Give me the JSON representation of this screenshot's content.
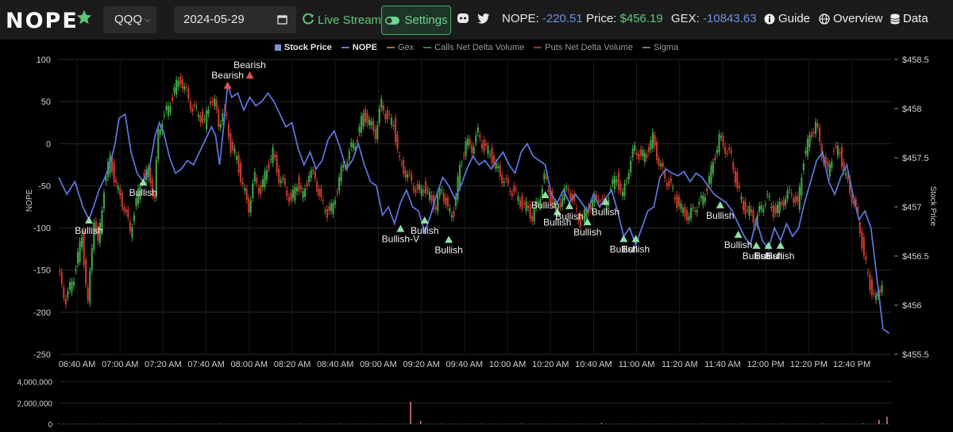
{
  "navbar": {
    "brand": "NOPE",
    "ticker_value": "QQQ",
    "date_value": "2024-05-29",
    "live_label": "Live Stream",
    "settings_label": "Settings",
    "nope_label": "NOPE:",
    "nope_value": "-220.51",
    "price_label": "Price:",
    "price_value": "$456.19",
    "gex_label": "GEX:",
    "gex_value": "-10843.63",
    "guide_label": "Guide",
    "overview_label": "Overview",
    "data_label": "Data"
  },
  "colors": {
    "accent_green": "#5cc97a",
    "value_blue": "#6c8fe6",
    "nope_line": "#5b73d8",
    "candle_up": "#3fa043",
    "candle_down": "#c0392b",
    "bullish_marker": "#8fe0a4",
    "bearish_marker": "#e05050"
  },
  "chart_data": {
    "type": "line",
    "legend": [
      {
        "name": "Stock Price",
        "color": "#7d8fd0",
        "active": true
      },
      {
        "name": "NOPE",
        "color": "#5b73d8",
        "active": true
      },
      {
        "name": "Gex",
        "color": "#a0723c",
        "active": false
      },
      {
        "name": "Calls Net Delta Volume",
        "color": "#3f7a4b",
        "active": false
      },
      {
        "name": "Puts Net Delta Volume",
        "color": "#8a3a3a",
        "active": false
      },
      {
        "name": "Sigma",
        "color": "#777777",
        "active": false
      }
    ],
    "left_axis": {
      "label": "NOPE",
      "ticks": [
        "100",
        "50",
        "0",
        "-50",
        "-100",
        "-150",
        "-200",
        "-250"
      ],
      "ylim": [
        -250,
        100
      ]
    },
    "right_axis": {
      "label": "Stock Price",
      "ticks": [
        "$458.5",
        "$458",
        "$457.5",
        "$457",
        "$456.5",
        "$456",
        "$455.5"
      ],
      "ylim": [
        455.5,
        458.5
      ]
    },
    "x_ticks": [
      "06:40 AM",
      "07:00 AM",
      "07:20 AM",
      "07:40 AM",
      "08:00 AM",
      "08:20 AM",
      "08:40 AM",
      "09:00 AM",
      "09:20 AM",
      "09:40 AM",
      "10:00 AM",
      "10:20 AM",
      "10:40 AM",
      "11:00 AM",
      "11:20 AM",
      "11:40 AM",
      "12:00 PM",
      "12:20 PM",
      "12:40 PM"
    ],
    "volume_axis": {
      "ticks": [
        "4,000,000",
        "2,000,000",
        "0"
      ],
      "ylim": [
        0,
        4500000
      ]
    },
    "nope_series": [
      [
        0,
        -40
      ],
      [
        4,
        -60
      ],
      [
        8,
        -45
      ],
      [
        12,
        -75
      ],
      [
        15,
        -90
      ],
      [
        18,
        -70
      ],
      [
        20,
        -55
      ],
      [
        23,
        -40
      ],
      [
        26,
        -20
      ],
      [
        28,
        0
      ],
      [
        30,
        30
      ],
      [
        33,
        35
      ],
      [
        36,
        -10
      ],
      [
        39,
        -35
      ],
      [
        42,
        -45
      ],
      [
        45,
        -30
      ],
      [
        48,
        10
      ],
      [
        50,
        25
      ],
      [
        52,
        15
      ],
      [
        55,
        -15
      ],
      [
        58,
        -35
      ],
      [
        61,
        -30
      ],
      [
        64,
        -20
      ],
      [
        67,
        -25
      ],
      [
        70,
        -10
      ],
      [
        73,
        5
      ],
      [
        76,
        20
      ],
      [
        78,
        10
      ],
      [
        80,
        -25
      ],
      [
        82,
        20
      ],
      [
        84,
        70
      ],
      [
        86,
        55
      ],
      [
        89,
        60
      ],
      [
        92,
        40
      ],
      [
        95,
        55
      ],
      [
        98,
        45
      ],
      [
        101,
        50
      ],
      [
        104,
        60
      ],
      [
        107,
        50
      ],
      [
        110,
        35
      ],
      [
        113,
        20
      ],
      [
        116,
        25
      ],
      [
        119,
        -5
      ],
      [
        122,
        -25
      ],
      [
        125,
        -10
      ],
      [
        128,
        -30
      ],
      [
        131,
        -20
      ],
      [
        134,
        5
      ],
      [
        137,
        15
      ],
      [
        140,
        -5
      ],
      [
        143,
        -30
      ],
      [
        146,
        -20
      ],
      [
        149,
        0
      ],
      [
        152,
        -25
      ],
      [
        155,
        -45
      ],
      [
        158,
        -50
      ],
      [
        161,
        -85
      ],
      [
        164,
        -75
      ],
      [
        167,
        -95
      ],
      [
        170,
        -70
      ],
      [
        173,
        -55
      ],
      [
        176,
        -75
      ],
      [
        179,
        -80
      ],
      [
        182,
        -105
      ],
      [
        185,
        -85
      ],
      [
        188,
        -60
      ],
      [
        191,
        -40
      ],
      [
        194,
        -50
      ],
      [
        197,
        -65
      ],
      [
        200,
        -50
      ],
      [
        203,
        -30
      ],
      [
        206,
        -15
      ],
      [
        209,
        -25
      ],
      [
        212,
        -20
      ],
      [
        215,
        -30
      ],
      [
        218,
        -20
      ],
      [
        221,
        -10
      ],
      [
        224,
        -25
      ],
      [
        227,
        -35
      ],
      [
        230,
        -10
      ],
      [
        233,
        0
      ],
      [
        236,
        -15
      ],
      [
        239,
        -20
      ],
      [
        242,
        -25
      ],
      [
        245,
        -60
      ],
      [
        248,
        -70
      ],
      [
        251,
        -55
      ],
      [
        254,
        -70
      ],
      [
        257,
        -60
      ],
      [
        260,
        -70
      ],
      [
        263,
        -80
      ],
      [
        266,
        -60
      ],
      [
        269,
        -75
      ],
      [
        272,
        -65
      ],
      [
        275,
        -55
      ],
      [
        278,
        -80
      ],
      [
        281,
        -110
      ],
      [
        284,
        -100
      ],
      [
        287,
        -120
      ],
      [
        290,
        -100
      ],
      [
        293,
        -80
      ],
      [
        296,
        -75
      ],
      [
        299,
        -40
      ],
      [
        302,
        -30
      ],
      [
        305,
        -35
      ],
      [
        308,
        -38
      ],
      [
        311,
        -33
      ],
      [
        314,
        -45
      ],
      [
        317,
        -35
      ],
      [
        320,
        -40
      ],
      [
        323,
        -50
      ],
      [
        326,
        -60
      ],
      [
        329,
        -65
      ],
      [
        332,
        -70
      ],
      [
        335,
        -80
      ],
      [
        338,
        -95
      ],
      [
        341,
        -110
      ],
      [
        344,
        -120
      ],
      [
        347,
        -90
      ],
      [
        350,
        -115
      ],
      [
        353,
        -125
      ],
      [
        356,
        -100
      ],
      [
        359,
        -115
      ],
      [
        362,
        -95
      ],
      [
        365,
        -110
      ],
      [
        368,
        -100
      ],
      [
        371,
        -70
      ],
      [
        374,
        -45
      ],
      [
        377,
        -20
      ],
      [
        380,
        -10
      ],
      [
        383,
        -45
      ],
      [
        386,
        -60
      ],
      [
        389,
        -40
      ],
      [
        392,
        -25
      ],
      [
        395,
        -60
      ],
      [
        398,
        -90
      ],
      [
        401,
        -80
      ],
      [
        404,
        -100
      ],
      [
        407,
        -160
      ],
      [
        410,
        -220
      ],
      [
        413,
        -225
      ]
    ],
    "price_candles": [
      [
        0,
        456.35
      ],
      [
        4,
        456.05
      ],
      [
        8,
        456.3
      ],
      [
        12,
        456.7
      ],
      [
        15,
        456.0
      ],
      [
        18,
        456.9
      ],
      [
        20,
        456.6
      ],
      [
        23,
        457.2
      ],
      [
        26,
        457.5
      ],
      [
        28,
        457.3
      ],
      [
        30,
        457.15
      ],
      [
        33,
        457.0
      ],
      [
        36,
        456.75
      ],
      [
        39,
        457.05
      ],
      [
        42,
        457.3
      ],
      [
        45,
        457.35
      ],
      [
        48,
        457.1
      ],
      [
        50,
        457.75
      ],
      [
        52,
        457.9
      ],
      [
        55,
        458.0
      ],
      [
        58,
        458.2
      ],
      [
        61,
        458.3
      ],
      [
        64,
        458.15
      ],
      [
        67,
        458.0
      ],
      [
        70,
        457.95
      ],
      [
        73,
        457.85
      ],
      [
        76,
        458.1
      ],
      [
        78,
        458.05
      ],
      [
        80,
        457.85
      ],
      [
        82,
        457.95
      ],
      [
        84,
        457.9
      ],
      [
        86,
        457.6
      ],
      [
        89,
        457.5
      ],
      [
        92,
        457.2
      ],
      [
        95,
        457.0
      ],
      [
        98,
        457.3
      ],
      [
        101,
        457.15
      ],
      [
        104,
        457.4
      ],
      [
        107,
        457.55
      ],
      [
        110,
        457.3
      ],
      [
        113,
        457.2
      ],
      [
        116,
        457.05
      ],
      [
        119,
        457.25
      ],
      [
        122,
        457.1
      ],
      [
        125,
        457.35
      ],
      [
        128,
        457.3
      ],
      [
        131,
        457.05
      ],
      [
        134,
        456.95
      ],
      [
        137,
        457.0
      ],
      [
        140,
        457.3
      ],
      [
        143,
        457.45
      ],
      [
        146,
        457.6
      ],
      [
        149,
        457.7
      ],
      [
        152,
        457.95
      ],
      [
        155,
        457.85
      ],
      [
        158,
        457.75
      ],
      [
        161,
        458.05
      ],
      [
        164,
        457.9
      ],
      [
        167,
        457.85
      ],
      [
        170,
        457.45
      ],
      [
        173,
        457.35
      ],
      [
        176,
        457.25
      ],
      [
        179,
        457.15
      ],
      [
        182,
        457.2
      ],
      [
        185,
        457.1
      ],
      [
        188,
        457.0
      ],
      [
        191,
        457.2
      ],
      [
        194,
        456.95
      ],
      [
        197,
        456.95
      ],
      [
        200,
        457.4
      ],
      [
        203,
        457.65
      ],
      [
        206,
        457.6
      ],
      [
        209,
        457.75
      ],
      [
        212,
        457.6
      ],
      [
        215,
        457.55
      ],
      [
        218,
        457.4
      ],
      [
        221,
        457.3
      ],
      [
        224,
        457.2
      ],
      [
        227,
        457.15
      ],
      [
        230,
        457.05
      ],
      [
        233,
        457.0
      ],
      [
        236,
        456.9
      ],
      [
        239,
        457.05
      ],
      [
        242,
        457.3
      ],
      [
        245,
        457.1
      ],
      [
        248,
        456.95
      ],
      [
        251,
        457.1
      ],
      [
        254,
        457.2
      ],
      [
        257,
        457.0
      ],
      [
        260,
        456.85
      ],
      [
        263,
        456.95
      ],
      [
        266,
        457.05
      ],
      [
        269,
        457.1
      ],
      [
        272,
        457.0
      ],
      [
        275,
        457.2
      ],
      [
        278,
        457.3
      ],
      [
        281,
        457.1
      ],
      [
        284,
        457.4
      ],
      [
        287,
        457.6
      ],
      [
        290,
        457.5
      ],
      [
        293,
        457.55
      ],
      [
        296,
        457.7
      ],
      [
        299,
        457.45
      ],
      [
        302,
        457.3
      ],
      [
        305,
        457.2
      ],
      [
        308,
        457.05
      ],
      [
        311,
        456.95
      ],
      [
        314,
        456.9
      ],
      [
        317,
        457.0
      ],
      [
        320,
        457.05
      ],
      [
        323,
        457.2
      ],
      [
        326,
        457.45
      ],
      [
        329,
        457.7
      ],
      [
        332,
        457.6
      ],
      [
        335,
        457.5
      ],
      [
        338,
        457.2
      ],
      [
        341,
        457.0
      ],
      [
        344,
        456.95
      ],
      [
        347,
        456.85
      ],
      [
        350,
        457.0
      ],
      [
        353,
        457.1
      ],
      [
        356,
        456.95
      ],
      [
        359,
        457.0
      ],
      [
        362,
        457.1
      ],
      [
        365,
        457.15
      ],
      [
        368,
        457.0
      ],
      [
        371,
        457.5
      ],
      [
        374,
        457.7
      ],
      [
        377,
        457.85
      ],
      [
        380,
        457.55
      ],
      [
        383,
        457.35
      ],
      [
        386,
        457.6
      ],
      [
        389,
        457.55
      ],
      [
        392,
        457.3
      ],
      [
        395,
        457.1
      ],
      [
        398,
        456.9
      ],
      [
        401,
        456.5
      ],
      [
        404,
        456.2
      ],
      [
        407,
        456.05
      ],
      [
        410,
        456.25
      ]
    ],
    "annotations": [
      {
        "label": "Bullish",
        "type": "bull",
        "t": 15,
        "nope": -90
      },
      {
        "label": "Bullish",
        "type": "bull",
        "t": 42,
        "nope": -45
      },
      {
        "label": "Bearish",
        "type": "bear",
        "t": 84,
        "nope": 70
      },
      {
        "label": "Bearish",
        "type": "bear",
        "t": 95,
        "nope": 82
      },
      {
        "label": "Bullish-V",
        "type": "bull",
        "t": 170,
        "nope": -100
      },
      {
        "label": "Bullish",
        "type": "bull",
        "t": 182,
        "nope": -90
      },
      {
        "label": "Bullish",
        "type": "bull",
        "t": 194,
        "nope": -113
      },
      {
        "label": "Bullish",
        "type": "bull",
        "t": 242,
        "nope": -60
      },
      {
        "label": "Bullish",
        "type": "bull",
        "t": 248,
        "nope": -80
      },
      {
        "label": "Bullish",
        "type": "bull",
        "t": 254,
        "nope": -73
      },
      {
        "label": "Bullish",
        "type": "bull",
        "t": 263,
        "nope": -92
      },
      {
        "label": "Bullish",
        "type": "bull",
        "t": 272,
        "nope": -68
      },
      {
        "label": "Bullish",
        "type": "bull",
        "t": 281,
        "nope": -112
      },
      {
        "label": "Bullish",
        "type": "bull",
        "t": 287,
        "nope": -112
      },
      {
        "label": "Bullish",
        "type": "bull",
        "t": 329,
        "nope": -72
      },
      {
        "label": "Bullish",
        "type": "bull",
        "t": 338,
        "nope": -107
      },
      {
        "label": "Bullish",
        "type": "bull",
        "t": 347,
        "nope": -120
      },
      {
        "label": "Bullish",
        "type": "bull",
        "t": 353,
        "nope": -120
      },
      {
        "label": "Bullish",
        "type": "bull",
        "t": 359,
        "nope": -120
      }
    ],
    "volume_bars": [
      [
        0,
        30000
      ],
      [
        20,
        25000
      ],
      [
        40,
        30000
      ],
      [
        60,
        25000
      ],
      [
        80,
        40000
      ],
      [
        100,
        30000
      ],
      [
        120,
        25000
      ],
      [
        140,
        30000
      ],
      [
        160,
        20000
      ],
      [
        175,
        2100000
      ],
      [
        180,
        300000
      ],
      [
        190,
        35000
      ],
      [
        210,
        30000
      ],
      [
        230,
        40000
      ],
      [
        260,
        25000
      ],
      [
        270,
        90000
      ],
      [
        300,
        30000
      ],
      [
        320,
        35000
      ],
      [
        340,
        30000
      ],
      [
        360,
        25000
      ],
      [
        380,
        40000
      ],
      [
        400,
        60000
      ],
      [
        408,
        400000
      ],
      [
        412,
        700000
      ]
    ]
  }
}
